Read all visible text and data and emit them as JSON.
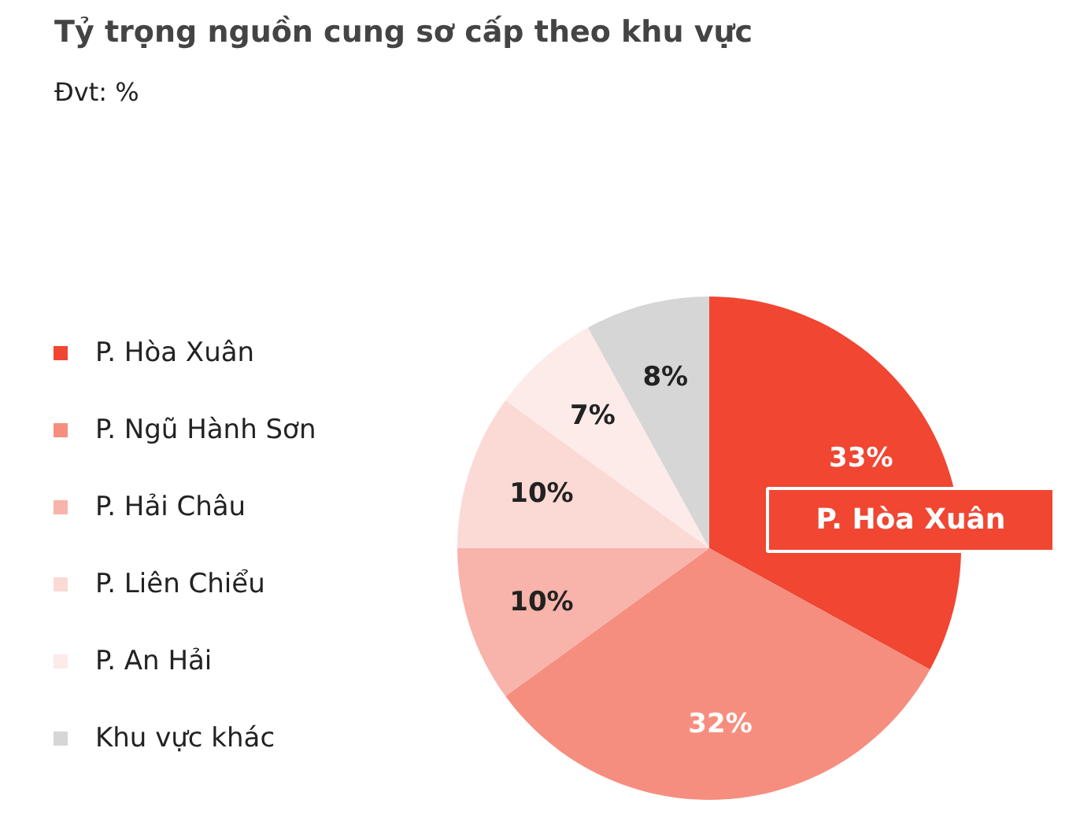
{
  "chart_data": {
    "type": "pie",
    "title": "Tỷ trọng nguồn cung sơ cấp theo khu vực",
    "subtitle": "Đvt: %",
    "categories": [
      "P. Hòa Xuân",
      "P. Ngũ Hành Sơn",
      "P. Hải Châu",
      "P. Liên Chiểu",
      "P. An Hải",
      "Khu vực khác"
    ],
    "values": [
      33,
      32,
      10,
      10,
      7,
      8
    ],
    "value_labels": [
      "33%",
      "32%",
      "10%",
      "10%",
      "7%",
      "8%"
    ],
    "colors": [
      "#f04632",
      "#f68e7f",
      "#f8b3aa",
      "#fbd9d5",
      "#fdebe9",
      "#d6d6d6"
    ],
    "legend": "left",
    "annotations": [
      "P. Hòa Xuân"
    ]
  }
}
